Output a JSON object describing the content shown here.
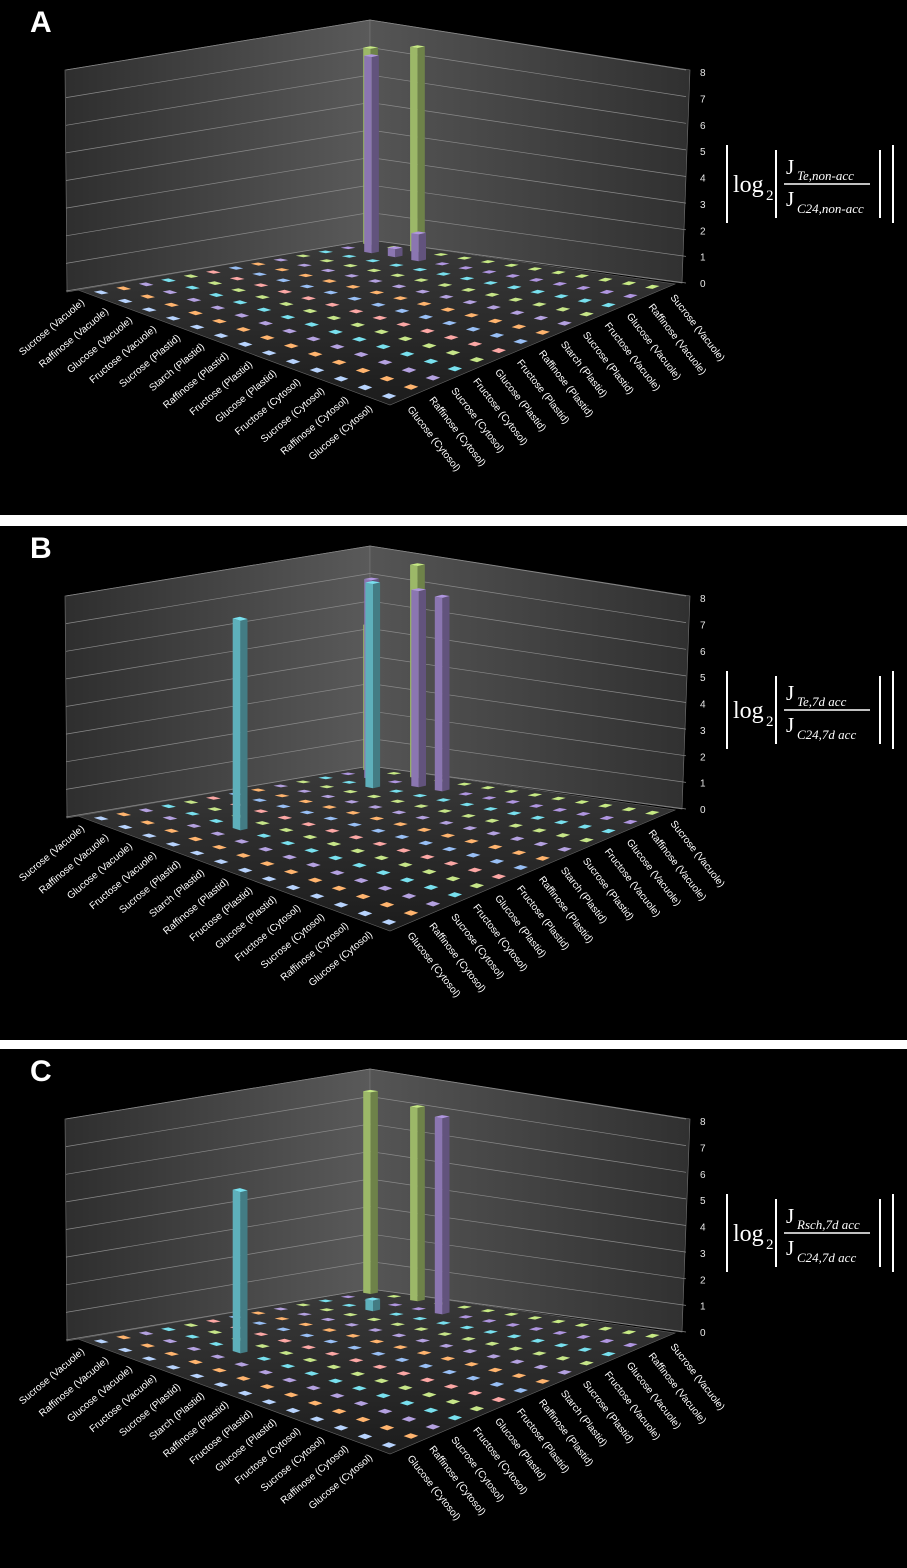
{
  "chart_data": [
    {
      "type": "bar3d",
      "panel": "A",
      "formula": {
        "log": "log",
        "base": "2",
        "numerator": "J",
        "numerator_sub": "Te,non-acc",
        "denominator": "J",
        "denominator_sub": "C24,non-acc"
      },
      "zlim": [
        0,
        8
      ],
      "zticks": [
        0,
        1,
        2,
        3,
        4,
        5,
        6,
        7,
        8
      ],
      "categories": [
        "Sucrose (Vacuole)",
        "Raffinose (Vacuole)",
        "Glucose (Vacuole)",
        "Fructose (Vacuole)",
        "Sucrose (Plastid)",
        "Starch (Plastid)",
        "Raffinose (Plastid)",
        "Fructose (Plastid)",
        "Glucose (Plastid)",
        "Fructose (Cytosol)",
        "Sucrose (Cytosol)",
        "Raffinose (Cytosol)",
        "Glucose (Cytosol)"
      ],
      "series": [
        {
          "name": "Glucose (Cytosol)",
          "color": "#a9c3ea",
          "values": [
            0,
            0,
            0,
            0,
            0,
            0,
            0,
            0,
            0,
            0,
            0,
            0,
            0
          ]
        },
        {
          "name": "Raffinose (Cytosol)",
          "color": "#f2a766",
          "values": [
            0,
            0,
            0,
            0,
            0,
            0,
            0,
            0,
            0,
            0,
            0,
            0,
            0
          ]
        },
        {
          "name": "Sucrose (Cytosol)",
          "color": "#a795cf",
          "values": [
            0,
            0,
            0,
            0,
            0,
            0,
            0,
            0,
            0,
            0,
            0,
            0,
            0
          ]
        },
        {
          "name": "Fructose (Cytosol)",
          "color": "#6fcfdc",
          "values": [
            0,
            0,
            0,
            0,
            0,
            0,
            0,
            0,
            0,
            0,
            0,
            0,
            0
          ]
        },
        {
          "name": "Glucose (Plastid)",
          "color": "#b7d47e",
          "values": [
            0,
            0,
            0,
            0,
            0,
            0,
            0,
            0,
            0,
            0,
            0,
            0,
            0
          ]
        },
        {
          "name": "Fructose (Plastid)",
          "color": "#e99b99",
          "values": [
            0,
            0,
            0,
            0,
            0,
            0,
            0,
            0,
            0,
            0,
            0,
            0,
            0
          ]
        },
        {
          "name": "Raffinose (Plastid)",
          "color": "#8db1e3",
          "values": [
            0,
            0,
            0,
            0,
            0,
            0,
            0,
            0,
            0,
            0,
            0,
            0,
            0
          ]
        },
        {
          "name": "Starch (Plastid)",
          "color": "#f2a766",
          "values": [
            0,
            0,
            0,
            0,
            0,
            0,
            0,
            0,
            0,
            0,
            0,
            0,
            0
          ]
        },
        {
          "name": "Sucrose (Plastid)",
          "color": "#a795cf",
          "values": [
            0,
            0,
            0,
            0,
            0,
            0,
            0,
            0,
            0,
            0,
            0,
            0,
            0
          ]
        },
        {
          "name": "Fructose (Vacuole)",
          "color": "#b7d47e",
          "values": [
            0,
            0,
            0,
            0,
            0,
            0,
            0,
            0,
            0,
            0,
            0,
            0,
            0
          ]
        },
        {
          "name": "Glucose (Vacuole)",
          "color": "#6fcfdc",
          "values": [
            0,
            0,
            0,
            0,
            0,
            0,
            0,
            0,
            0,
            0,
            0,
            0,
            0
          ]
        },
        {
          "name": "Raffinose (Vacuole)",
          "color": "#a38bd0",
          "values": [
            0,
            7.3,
            0.3,
            1.0,
            0,
            0,
            0,
            0,
            0,
            0,
            0,
            0,
            0
          ]
        },
        {
          "name": "Sucrose (Vacuole)",
          "color": "#b8d97a",
          "values": [
            7.3,
            0,
            7.6,
            0,
            0,
            0,
            0,
            0,
            0,
            0,
            0,
            0,
            0
          ]
        }
      ]
    },
    {
      "type": "bar3d",
      "panel": "B",
      "formula": {
        "log": "log",
        "base": "2",
        "numerator": "J",
        "numerator_sub": "Te,7d acc",
        "denominator": "J",
        "denominator_sub": "C24,7d acc"
      },
      "zlim": [
        0,
        8
      ],
      "zticks": [
        0,
        1,
        2,
        3,
        4,
        5,
        6,
        7,
        8
      ],
      "categories": [
        "Sucrose (Vacuole)",
        "Raffinose (Vacuole)",
        "Glucose (Vacuole)",
        "Fructose (Vacuole)",
        "Sucrose (Plastid)",
        "Starch (Plastid)",
        "Raffinose (Plastid)",
        "Fructose (Plastid)",
        "Glucose (Plastid)",
        "Fructose (Cytosol)",
        "Sucrose (Cytosol)",
        "Raffinose (Cytosol)",
        "Glucose (Cytosol)"
      ],
      "series": [
        {
          "name": "Glucose (Cytosol)",
          "color": "#a9c3ea",
          "values": [
            0,
            0,
            0,
            0,
            0,
            0,
            0,
            0,
            0,
            0,
            0,
            0,
            0
          ]
        },
        {
          "name": "Raffinose (Cytosol)",
          "color": "#f2a766",
          "values": [
            0,
            0,
            0,
            0,
            0,
            0,
            0,
            0,
            0,
            0,
            0,
            0,
            0
          ]
        },
        {
          "name": "Sucrose (Cytosol)",
          "color": "#a795cf",
          "values": [
            0,
            0,
            0,
            0,
            0,
            0,
            0,
            0,
            0,
            0,
            0,
            0,
            0
          ]
        },
        {
          "name": "Fructose (Cytosol)",
          "color": "#6fcfdc",
          "values": [
            0,
            0,
            0,
            7.8,
            0,
            0,
            0,
            0,
            0,
            0,
            0,
            0,
            0
          ]
        },
        {
          "name": "Glucose (Plastid)",
          "color": "#b7d47e",
          "values": [
            0,
            0,
            0,
            0,
            0,
            0,
            0,
            0,
            0,
            0,
            0,
            0,
            0
          ]
        },
        {
          "name": "Fructose (Plastid)",
          "color": "#e99b99",
          "values": [
            0,
            0,
            0,
            0,
            0,
            0,
            0,
            0,
            0,
            0,
            0,
            0,
            0
          ]
        },
        {
          "name": "Raffinose (Plastid)",
          "color": "#8db1e3",
          "values": [
            0,
            0,
            0,
            0,
            0,
            0,
            0,
            0,
            0,
            0,
            0,
            0,
            0
          ]
        },
        {
          "name": "Starch (Plastid)",
          "color": "#f2a766",
          "values": [
            0,
            0,
            0,
            0,
            0,
            0,
            0,
            0,
            0,
            0,
            0,
            0,
            0
          ]
        },
        {
          "name": "Sucrose (Plastid)",
          "color": "#a795cf",
          "values": [
            0,
            0,
            0,
            0,
            0,
            0,
            0,
            0,
            0,
            0,
            0,
            0,
            0
          ]
        },
        {
          "name": "Fructose (Vacuole)",
          "color": "#b7d47e",
          "values": [
            0,
            0,
            0,
            0,
            0,
            0,
            0,
            0,
            0,
            0,
            0,
            0,
            0
          ]
        },
        {
          "name": "Glucose (Vacuole)",
          "color": "#6fcfdc",
          "values": [
            0,
            0,
            7.6,
            0,
            0,
            0,
            0,
            0,
            0,
            0,
            0,
            0,
            0
          ]
        },
        {
          "name": "Raffinose (Vacuole)",
          "color": "#a38bd0",
          "values": [
            0,
            7.4,
            0,
            7.3,
            7.2,
            0,
            0,
            0,
            0,
            0,
            0,
            0,
            0
          ]
        },
        {
          "name": "Sucrose (Vacuole)",
          "color": "#b8d97a",
          "values": [
            5.4,
            0,
            7.9,
            0,
            0,
            0,
            0,
            0,
            0,
            0,
            0,
            0,
            0
          ]
        }
      ]
    },
    {
      "type": "bar3d",
      "panel": "C",
      "formula": {
        "log": "log",
        "base": "2",
        "numerator": "J",
        "numerator_sub": "Rsch,7d acc",
        "denominator": "J",
        "denominator_sub": "C24,7d acc"
      },
      "zlim": [
        0,
        8
      ],
      "zticks": [
        0,
        1,
        2,
        3,
        4,
        5,
        6,
        7,
        8
      ],
      "categories": [
        "Sucrose (Vacuole)",
        "Raffinose (Vacuole)",
        "Glucose (Vacuole)",
        "Fructose (Vacuole)",
        "Sucrose (Plastid)",
        "Starch (Plastid)",
        "Raffinose (Plastid)",
        "Fructose (Plastid)",
        "Glucose (Plastid)",
        "Fructose (Cytosol)",
        "Sucrose (Cytosol)",
        "Raffinose (Cytosol)",
        "Glucose (Cytosol)"
      ],
      "series": [
        {
          "name": "Glucose (Cytosol)",
          "color": "#a9c3ea",
          "values": [
            0,
            0,
            0,
            0,
            0,
            0,
            0,
            0,
            0,
            0,
            0,
            0,
            0
          ]
        },
        {
          "name": "Raffinose (Cytosol)",
          "color": "#f2a766",
          "values": [
            0,
            0,
            0,
            0,
            0,
            0,
            0,
            0,
            0,
            0,
            0,
            0,
            0
          ]
        },
        {
          "name": "Sucrose (Cytosol)",
          "color": "#a795cf",
          "values": [
            0,
            0,
            0,
            0,
            0,
            0,
            0,
            0,
            0,
            0,
            0,
            0,
            0
          ]
        },
        {
          "name": "Fructose (Cytosol)",
          "color": "#6fcfdc",
          "values": [
            0,
            0,
            0,
            6.0,
            0,
            0,
            0,
            0,
            0,
            0,
            0,
            0,
            0
          ]
        },
        {
          "name": "Glucose (Plastid)",
          "color": "#b7d47e",
          "values": [
            0,
            0,
            0,
            0,
            0,
            0,
            0,
            0,
            0,
            0,
            0,
            0,
            0
          ]
        },
        {
          "name": "Fructose (Plastid)",
          "color": "#e99b99",
          "values": [
            0,
            0,
            0,
            0,
            0,
            0,
            0,
            0,
            0,
            0,
            0,
            0,
            0
          ]
        },
        {
          "name": "Raffinose (Plastid)",
          "color": "#8db1e3",
          "values": [
            0,
            0,
            0,
            0,
            0,
            0,
            0,
            0,
            0,
            0,
            0,
            0,
            0
          ]
        },
        {
          "name": "Starch (Plastid)",
          "color": "#f2a766",
          "values": [
            0,
            0,
            0,
            0,
            0,
            0,
            0,
            0,
            0,
            0,
            0,
            0,
            0
          ]
        },
        {
          "name": "Sucrose (Plastid)",
          "color": "#a795cf",
          "values": [
            0,
            0,
            0,
            0,
            0,
            0,
            0,
            0,
            0,
            0,
            0,
            0,
            0
          ]
        },
        {
          "name": "Fructose (Vacuole)",
          "color": "#b7d47e",
          "values": [
            0,
            0,
            0,
            0,
            0,
            0,
            0,
            0,
            0,
            0,
            0,
            0,
            0
          ]
        },
        {
          "name": "Glucose (Vacuole)",
          "color": "#6fcfdc",
          "values": [
            0,
            0,
            0.4,
            0,
            0,
            0,
            0,
            0,
            0,
            0,
            0,
            0,
            0
          ]
        },
        {
          "name": "Raffinose (Vacuole)",
          "color": "#a38bd0",
          "values": [
            0,
            0,
            0,
            0,
            7.3,
            0,
            0,
            0,
            0,
            0,
            0,
            0,
            0
          ]
        },
        {
          "name": "Sucrose (Vacuole)",
          "color": "#b8d97a",
          "values": [
            7.5,
            0,
            7.2,
            0,
            0,
            0,
            0,
            0,
            0,
            0,
            0,
            0,
            0
          ]
        }
      ]
    }
  ]
}
